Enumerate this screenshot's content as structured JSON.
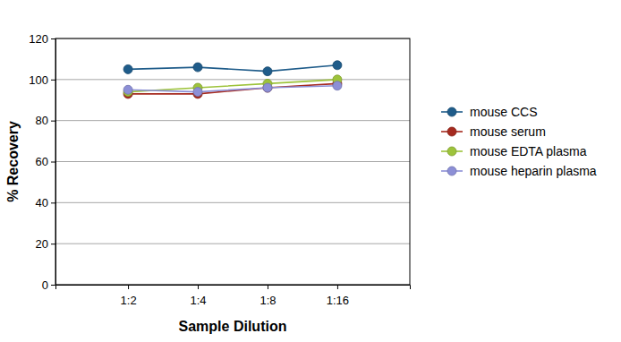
{
  "chart_data": {
    "type": "line",
    "x_label": "Sample Dilution",
    "y_label": "% Recovery",
    "categories": [
      "1:2",
      "1:4",
      "1:8",
      "1:16"
    ],
    "series": [
      {
        "name": "mouse CCS",
        "color": "#1f5c8a",
        "values": [
          105,
          106,
          104,
          107
        ]
      },
      {
        "name": "mouse serum",
        "color": "#a52a1f",
        "values": [
          93,
          93,
          96,
          98
        ]
      },
      {
        "name": "mouse EDTA plasma",
        "color": "#9dc33b",
        "values": [
          94,
          96,
          98,
          100
        ]
      },
      {
        "name": "mouse heparin plasma",
        "color": "#8c8fd6",
        "values": [
          95,
          94,
          96,
          97
        ]
      }
    ],
    "ylim": [
      0,
      120
    ],
    "yticks": [
      0,
      20,
      40,
      60,
      80,
      100,
      120
    ],
    "grid": true,
    "marker": "circle",
    "legend": "right"
  }
}
